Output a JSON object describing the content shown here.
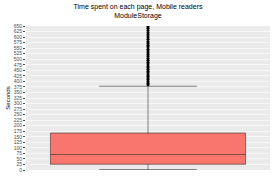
{
  "chart_data": {
    "type": "box",
    "title": "Time spent on each page, Mobile readers",
    "subtitle": "ModuleStorage",
    "y_label": "Seconds",
    "lowerfence": 2,
    "q1": 26,
    "median": 70,
    "q3": 167,
    "upperfence": 378,
    "outliers": [
      385,
      392,
      400,
      408,
      415,
      423,
      430,
      438,
      446,
      455,
      463,
      470,
      478,
      486,
      495,
      503,
      512,
      520,
      528,
      537,
      545,
      555,
      563,
      572,
      580,
      590,
      600,
      610,
      620,
      630,
      640,
      648
    ],
    "color": "#f8766d",
    "ylim": [
      0,
      650
    ],
    "yticks": [
      0,
      25,
      50,
      75,
      100,
      125,
      150,
      175,
      200,
      225,
      250,
      275,
      300,
      325,
      350,
      375,
      400,
      425,
      450,
      475,
      500,
      525,
      550,
      575,
      600,
      625,
      650
    ],
    "grid": true,
    "tick_labels": "y"
  }
}
